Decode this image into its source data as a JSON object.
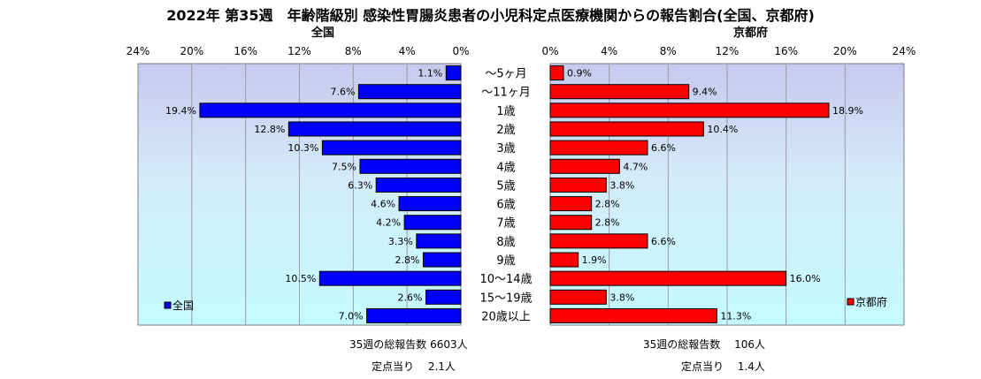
{
  "title": "2022年 第35週　年齢階級別 感染性胃腸炎患者の小児科定点医療機関からの報告割合(全国、京都府)",
  "chart_data": {
    "type": "bar",
    "orientation": "horizontal",
    "xlim": [
      0,
      24
    ],
    "tick_labels": [
      "0%",
      "4%",
      "8%",
      "12%",
      "16%",
      "20%",
      "24%"
    ],
    "categories": [
      "～5ヶ月",
      "～11ヶ月",
      "1歳",
      "2歳",
      "3歳",
      "4歳",
      "5歳",
      "6歳",
      "7歳",
      "8歳",
      "9歳",
      "10～14歳",
      "15～19歳",
      "20歳以上"
    ],
    "series": [
      {
        "name": "全国",
        "color": "#0000ff",
        "values": [
          1.1,
          7.6,
          19.4,
          12.8,
          10.3,
          7.5,
          6.3,
          4.6,
          4.2,
          3.3,
          2.8,
          10.5,
          2.6,
          7.0
        ],
        "labels": [
          "1.1%",
          "7.6%",
          "19.4%",
          "12.8%",
          "10.3%",
          "7.5%",
          "6.3%",
          "4.6%",
          "4.2%",
          "3.3%",
          "2.8%",
          "10.5%",
          "2.6%",
          "7.0%"
        ]
      },
      {
        "name": "京都府",
        "color": "#ff0000",
        "values": [
          0.9,
          9.4,
          18.9,
          10.4,
          6.6,
          4.7,
          3.8,
          2.8,
          2.8,
          6.6,
          1.9,
          16.0,
          3.8,
          11.3
        ],
        "labels": [
          "0.9%",
          "9.4%",
          "18.9%",
          "10.4%",
          "6.6%",
          "4.7%",
          "3.8%",
          "2.8%",
          "2.8%",
          "6.6%",
          "1.9%",
          "16.0%",
          "3.8%",
          "11.3%"
        ]
      }
    ],
    "grid": true,
    "legend_placement": "bottom-left of each panel"
  },
  "notes": {
    "national_total": "35週の総報告数 6603人",
    "national_per_site": "定点当り　 2.1人",
    "kyoto_total": "35週の総報告数　 106人",
    "kyoto_per_site": "定点当り　 1.4人"
  }
}
